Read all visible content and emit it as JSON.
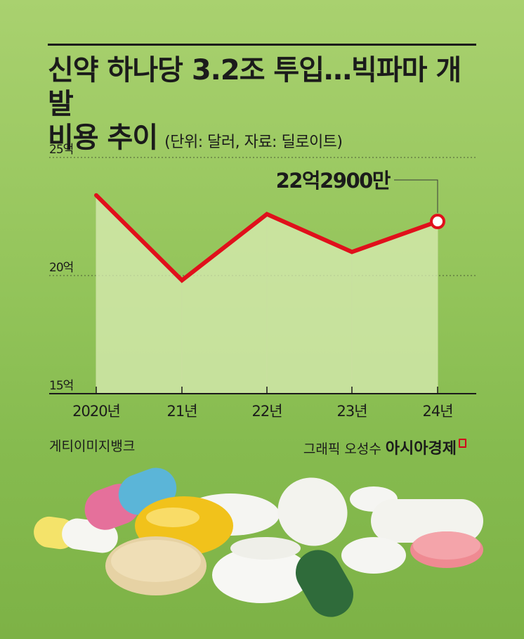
{
  "title": {
    "line1": "신약 하나당 3.2조 투입…빅파마 개발",
    "line2": "비용 추이",
    "subtitle": "(단위: 달러, 자료: 딜로이트)"
  },
  "credits": {
    "photo": "게티이미지뱅크",
    "graphic": "그래픽 오성수",
    "brand": "아시아경제"
  },
  "chart_data": {
    "type": "line",
    "categories": [
      "2020년",
      "21년",
      "22년",
      "23년",
      "24년"
    ],
    "values": [
      2.34,
      1.98,
      2.26,
      2.1,
      2.229
    ],
    "unit": "억 달러 (×10억)",
    "y_ticks": [
      {
        "value": 2.5,
        "label": "25억"
      },
      {
        "value": 2.0,
        "label": "20억"
      },
      {
        "value": 1.5,
        "label": "15억"
      }
    ],
    "ylim": [
      1.5,
      2.5
    ],
    "annotation": {
      "index": 4,
      "text": "22억2900만"
    },
    "line_color": "#e0101b",
    "area_color": "#d9ecb4",
    "grid": "dotted at 25억 and 20억"
  },
  "colors": {
    "background": "#93c45a",
    "text": "#1b1b1b",
    "line": "#e0101b",
    "brand_accent": "#d0021b"
  }
}
